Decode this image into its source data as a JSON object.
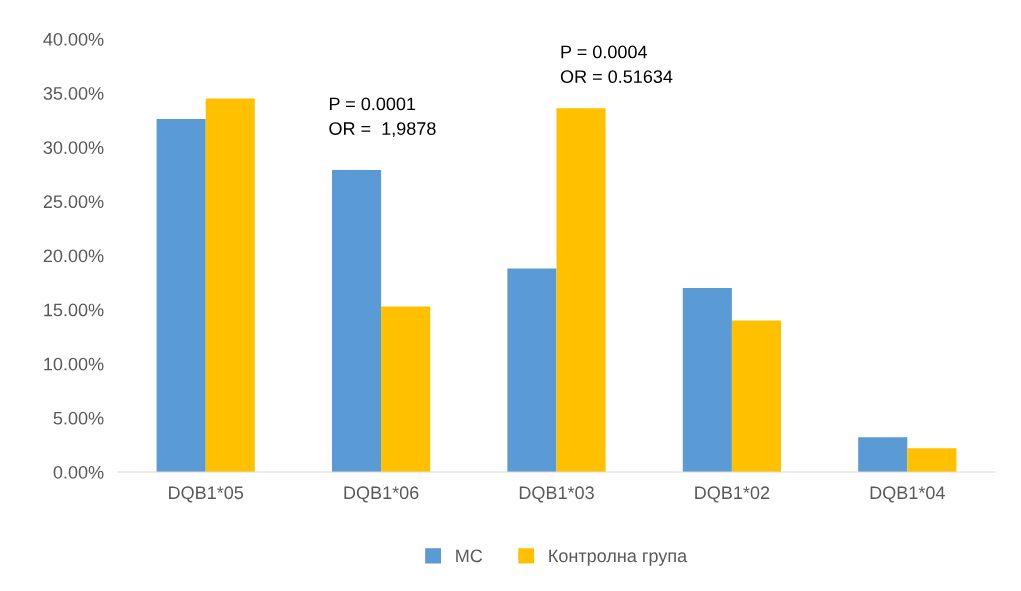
{
  "chart_data": {
    "type": "bar",
    "categories": [
      "DQB1*05",
      "DQB1*06",
      "DQB1*03",
      "DQB1*02",
      "DQB1*04"
    ],
    "series": [
      {
        "name": "МС",
        "color": "#5b9bd5",
        "values": [
          32.6,
          27.9,
          18.8,
          17.0,
          3.2
        ]
      },
      {
        "name": "Контролна група",
        "color": "#ffc000",
        "values": [
          34.5,
          15.3,
          33.6,
          14.0,
          2.2
        ]
      }
    ],
    "ylim": [
      0,
      40
    ],
    "yticks": [
      {
        "value": 0,
        "label": "0.00%"
      },
      {
        "value": 5,
        "label": "5.00%"
      },
      {
        "value": 10,
        "label": "10.00%"
      },
      {
        "value": 15,
        "label": "15.00%"
      },
      {
        "value": 20,
        "label": "20.00%"
      },
      {
        "value": 25,
        "label": "25.00%"
      },
      {
        "value": 30,
        "label": "30.00%"
      },
      {
        "value": 35,
        "label": "35.00%"
      },
      {
        "value": 40,
        "label": "40.00%"
      }
    ],
    "annotations": [
      "P = 0.0001\nOR =  1,9878",
      "P = 0.0004\nOR = 0.51634"
    ],
    "grid": false,
    "legend": "bottom"
  }
}
